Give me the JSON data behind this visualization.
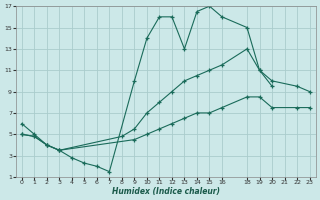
{
  "xlabel": "Humidex (Indice chaleur)",
  "bg_color": "#cce8e8",
  "grid_color": "#aacccc",
  "line_color": "#1a6b5a",
  "xlim": [
    -0.5,
    23.5
  ],
  "ylim": [
    1,
    17
  ],
  "xticks": [
    0,
    1,
    2,
    3,
    4,
    5,
    6,
    7,
    8,
    9,
    10,
    11,
    12,
    13,
    14,
    15,
    16,
    18,
    19,
    20,
    21,
    22,
    23
  ],
  "yticks": [
    1,
    3,
    5,
    7,
    9,
    11,
    13,
    15,
    17
  ],
  "line1_x": [
    0,
    1,
    2,
    3,
    4,
    5,
    6,
    7,
    9,
    10,
    11,
    12,
    13,
    14,
    15,
    16,
    18,
    19,
    20
  ],
  "line1_y": [
    6,
    5,
    4,
    3.5,
    2.8,
    2.3,
    2,
    1.5,
    10,
    14,
    16,
    16,
    13,
    16.5,
    17,
    16,
    15,
    11,
    9.5
  ],
  "line2_x": [
    0,
    1,
    2,
    3,
    8,
    9,
    10,
    11,
    12,
    13,
    14,
    15,
    16,
    18,
    19,
    20,
    22,
    23
  ],
  "line2_y": [
    5,
    4.8,
    4,
    3.5,
    4.8,
    5.5,
    7,
    8,
    9,
    10,
    10.5,
    11,
    11.5,
    13,
    11,
    10,
    9.5,
    9
  ],
  "line3_x": [
    0,
    1,
    2,
    3,
    9,
    10,
    11,
    12,
    13,
    14,
    15,
    16,
    18,
    19,
    20,
    22,
    23
  ],
  "line3_y": [
    5,
    4.8,
    4,
    3.5,
    4.5,
    5,
    5.5,
    6,
    6.5,
    7,
    7,
    7.5,
    8.5,
    8.5,
    7.5,
    7.5,
    7.5
  ]
}
